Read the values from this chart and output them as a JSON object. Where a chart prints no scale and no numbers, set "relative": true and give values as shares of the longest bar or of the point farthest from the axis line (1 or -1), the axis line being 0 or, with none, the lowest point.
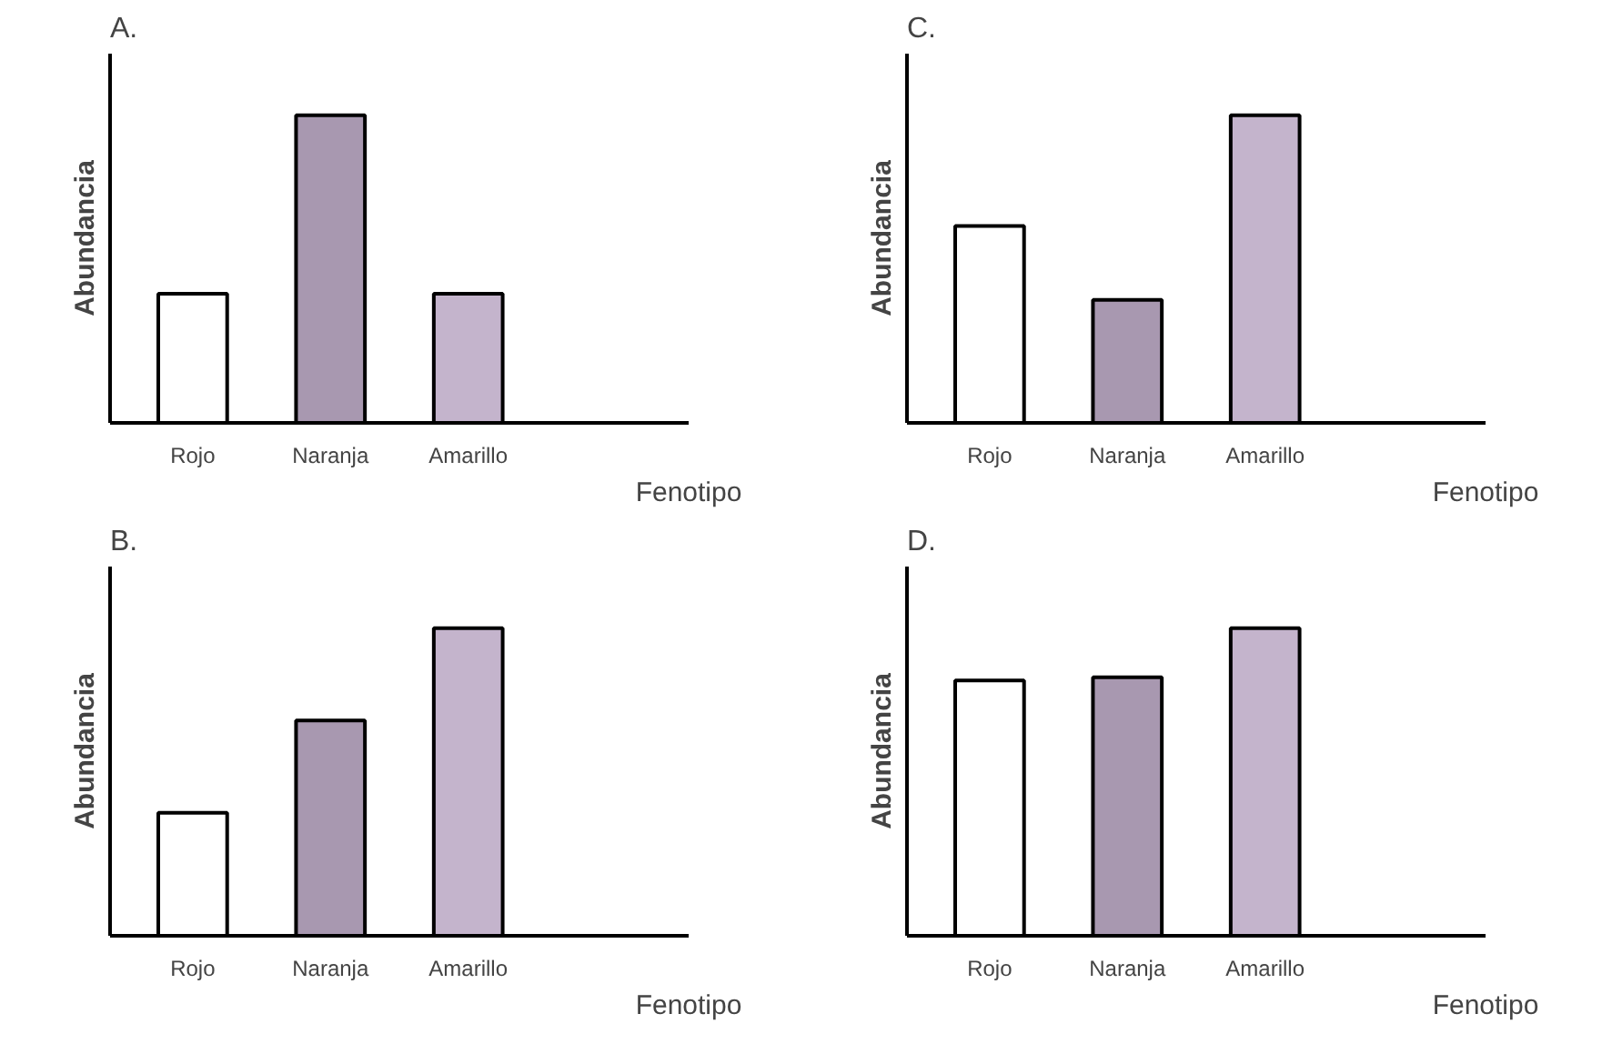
{
  "chart_data": [
    {
      "type": "bar",
      "title": "A.",
      "xlabel": "Fenotipo",
      "ylabel": "Abundancia",
      "relative": true,
      "categories": [
        "Rojo",
        "Naranja",
        "Amarillo"
      ],
      "values": [
        0.42,
        1,
        0.42
      ],
      "colors": [
        "#ffffff",
        "#a898b0",
        "#c4b4cc"
      ]
    },
    {
      "type": "bar",
      "title": "C.",
      "xlabel": "Fenotipo",
      "ylabel": "Abundancia",
      "relative": true,
      "categories": [
        "Rojo",
        "Naranja",
        "Amarillo"
      ],
      "values": [
        0.64,
        0.4,
        1
      ],
      "colors": [
        "#ffffff",
        "#a898b0",
        "#c4b4cc"
      ]
    },
    {
      "type": "bar",
      "title": "B.",
      "xlabel": "Fenotipo",
      "ylabel": "Abundancia",
      "relative": true,
      "categories": [
        "Rojo",
        "Naranja",
        "Amarillo"
      ],
      "values": [
        0.4,
        0.7,
        1
      ],
      "colors": [
        "#ffffff",
        "#a898b0",
        "#c4b4cc"
      ]
    },
    {
      "type": "bar",
      "title": "D.",
      "xlabel": "Fenotipo",
      "ylabel": "Abundancia",
      "relative": true,
      "categories": [
        "Rojo",
        "Naranja",
        "Amarillo"
      ],
      "values": [
        0.83,
        0.84,
        1
      ],
      "colors": [
        "#ffffff",
        "#a898b0",
        "#c4b4cc"
      ]
    }
  ]
}
